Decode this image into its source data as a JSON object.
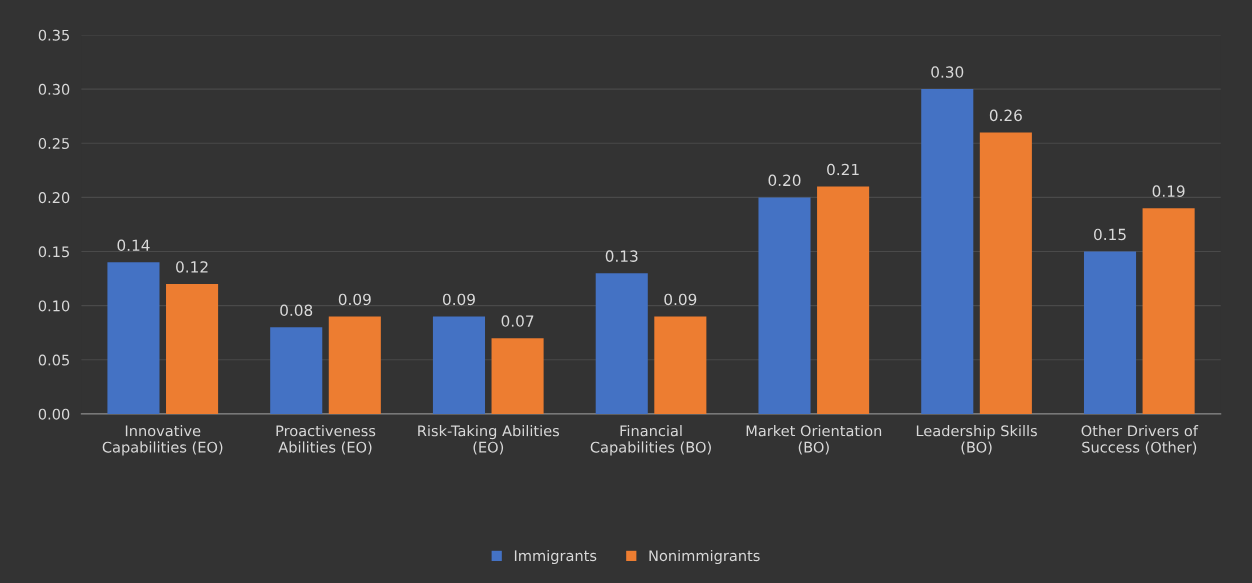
{
  "chart_data": {
    "type": "bar",
    "categories": [
      "Innovative\nCapabilities (EO)",
      "Proactiveness\nAbilities (EO)",
      "Risk-Taking Abilities\n(EO)",
      "Financial\nCapabilities (BO)",
      "Market Orientation\n(BO)",
      "Leadership Skills\n(BO)",
      "Other Drivers of\nSuccess (Other)"
    ],
    "series": [
      {
        "name": "Immigrants",
        "color": "#4472c4",
        "values": [
          0.14,
          0.08,
          0.09,
          0.13,
          0.2,
          0.3,
          0.15
        ],
        "value_labels": [
          "0.14",
          "0.08",
          "0.09",
          "0.13",
          "0.20",
          "0.30",
          "0.15"
        ]
      },
      {
        "name": "Nonimmigrants",
        "color": "#ed7d31",
        "values": [
          0.12,
          0.09,
          0.07,
          0.09,
          0.21,
          0.26,
          0.19
        ],
        "value_labels": [
          "0.12",
          "0.09",
          "0.07",
          "0.09",
          "0.21",
          "0.26",
          "0.19"
        ]
      }
    ],
    "ylim": [
      0,
      0.35
    ],
    "yticks": [
      {
        "value": 0,
        "label": "0.00"
      },
      {
        "value": 0.05,
        "label": "0.05"
      },
      {
        "value": 0.1,
        "label": "0.10"
      },
      {
        "value": 0.15,
        "label": "0.15"
      },
      {
        "value": 0.2,
        "label": "0.20"
      },
      {
        "value": 0.25,
        "label": "0.25"
      },
      {
        "value": 0.3,
        "label": "0.30"
      },
      {
        "value": 0.35,
        "label": "0.35"
      }
    ],
    "grid": "y",
    "legend": "bottom"
  }
}
